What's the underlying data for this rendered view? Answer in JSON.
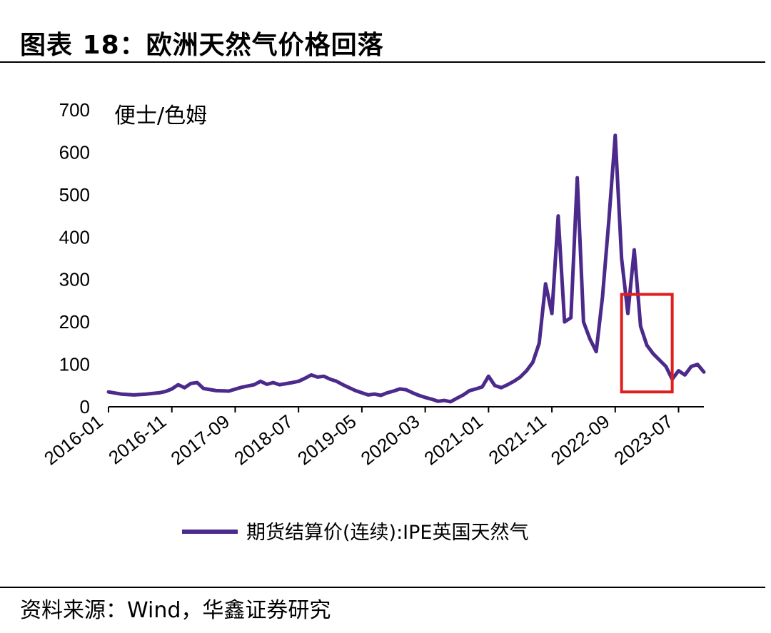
{
  "header": {
    "title": "图表 18：欧洲天然气价格回落"
  },
  "footer": {
    "source": "资料来源：Wind，华鑫证券研究"
  },
  "colors": {
    "series": "#4b2a8c",
    "highlight": "#e01e1e",
    "axis": "#000000"
  },
  "chart_data": {
    "type": "line",
    "title": "图表 18：欧洲天然气价格回落",
    "ylabel": "便士/色姆",
    "xlabel": "",
    "ylim": [
      0,
      700
    ],
    "yticks": [
      0,
      100,
      200,
      300,
      400,
      500,
      600,
      700
    ],
    "xlim": [
      "2016-01",
      "2023-11"
    ],
    "xticks": [
      "2016-01",
      "2016-11",
      "2017-09",
      "2018-07",
      "2019-05",
      "2020-03",
      "2021-01",
      "2021-11",
      "2022-09",
      "2023-07"
    ],
    "grid": false,
    "legend": "bottom",
    "series": [
      {
        "name": "期货结算价(连续):IPE英国天然气",
        "points": [
          [
            "2016-01",
            35
          ],
          [
            "2016-03",
            30
          ],
          [
            "2016-05",
            28
          ],
          [
            "2016-07",
            30
          ],
          [
            "2016-09",
            33
          ],
          [
            "2016-10",
            36
          ],
          [
            "2016-11",
            42
          ],
          [
            "2016-12",
            52
          ],
          [
            "2017-01",
            45
          ],
          [
            "2017-02",
            55
          ],
          [
            "2017-03",
            57
          ],
          [
            "2017-04",
            43
          ],
          [
            "2017-06",
            38
          ],
          [
            "2017-08",
            37
          ],
          [
            "2017-10",
            46
          ],
          [
            "2017-12",
            52
          ],
          [
            "2018-01",
            60
          ],
          [
            "2018-02",
            53
          ],
          [
            "2018-03",
            57
          ],
          [
            "2018-04",
            52
          ],
          [
            "2018-06",
            57
          ],
          [
            "2018-07",
            60
          ],
          [
            "2018-08",
            67
          ],
          [
            "2018-09",
            75
          ],
          [
            "2018-10",
            70
          ],
          [
            "2018-11",
            72
          ],
          [
            "2018-12",
            65
          ],
          [
            "2019-01",
            60
          ],
          [
            "2019-02",
            52
          ],
          [
            "2019-03",
            45
          ],
          [
            "2019-04",
            38
          ],
          [
            "2019-05",
            33
          ],
          [
            "2019-06",
            28
          ],
          [
            "2019-07",
            30
          ],
          [
            "2019-08",
            27
          ],
          [
            "2019-09",
            33
          ],
          [
            "2019-10",
            37
          ],
          [
            "2019-11",
            42
          ],
          [
            "2019-12",
            40
          ],
          [
            "2020-01",
            33
          ],
          [
            "2020-02",
            27
          ],
          [
            "2020-03",
            22
          ],
          [
            "2020-04",
            18
          ],
          [
            "2020-05",
            13
          ],
          [
            "2020-06",
            15
          ],
          [
            "2020-07",
            12
          ],
          [
            "2020-08",
            20
          ],
          [
            "2020-09",
            28
          ],
          [
            "2020-10",
            38
          ],
          [
            "2020-11",
            42
          ],
          [
            "2020-12",
            47
          ],
          [
            "2021-01",
            72
          ],
          [
            "2021-02",
            50
          ],
          [
            "2021-03",
            45
          ],
          [
            "2021-04",
            52
          ],
          [
            "2021-05",
            60
          ],
          [
            "2021-06",
            70
          ],
          [
            "2021-07",
            85
          ],
          [
            "2021-08",
            105
          ],
          [
            "2021-09",
            150
          ],
          [
            "2021-10",
            290
          ],
          [
            "2021-11",
            220
          ],
          [
            "2021-12",
            450
          ],
          [
            "2022-01",
            200
          ],
          [
            "2022-02",
            210
          ],
          [
            "2022-03",
            540
          ],
          [
            "2022-04",
            200
          ],
          [
            "2022-05",
            160
          ],
          [
            "2022-06",
            130
          ],
          [
            "2022-07",
            260
          ],
          [
            "2022-08",
            440
          ],
          [
            "2022-09",
            640
          ],
          [
            "2022-10",
            350
          ],
          [
            "2022-11",
            220
          ],
          [
            "2022-12",
            370
          ],
          [
            "2023-01",
            190
          ],
          [
            "2023-02",
            145
          ],
          [
            "2023-03",
            125
          ],
          [
            "2023-04",
            110
          ],
          [
            "2023-05",
            95
          ],
          [
            "2023-06",
            65
          ],
          [
            "2023-07",
            85
          ],
          [
            "2023-08",
            75
          ],
          [
            "2023-09",
            95
          ],
          [
            "2023-10",
            100
          ],
          [
            "2023-11",
            82
          ]
        ]
      }
    ],
    "highlight_box": {
      "x_start": "2022-10",
      "x_end": "2023-06",
      "y_min": 35,
      "y_max": 265
    }
  }
}
